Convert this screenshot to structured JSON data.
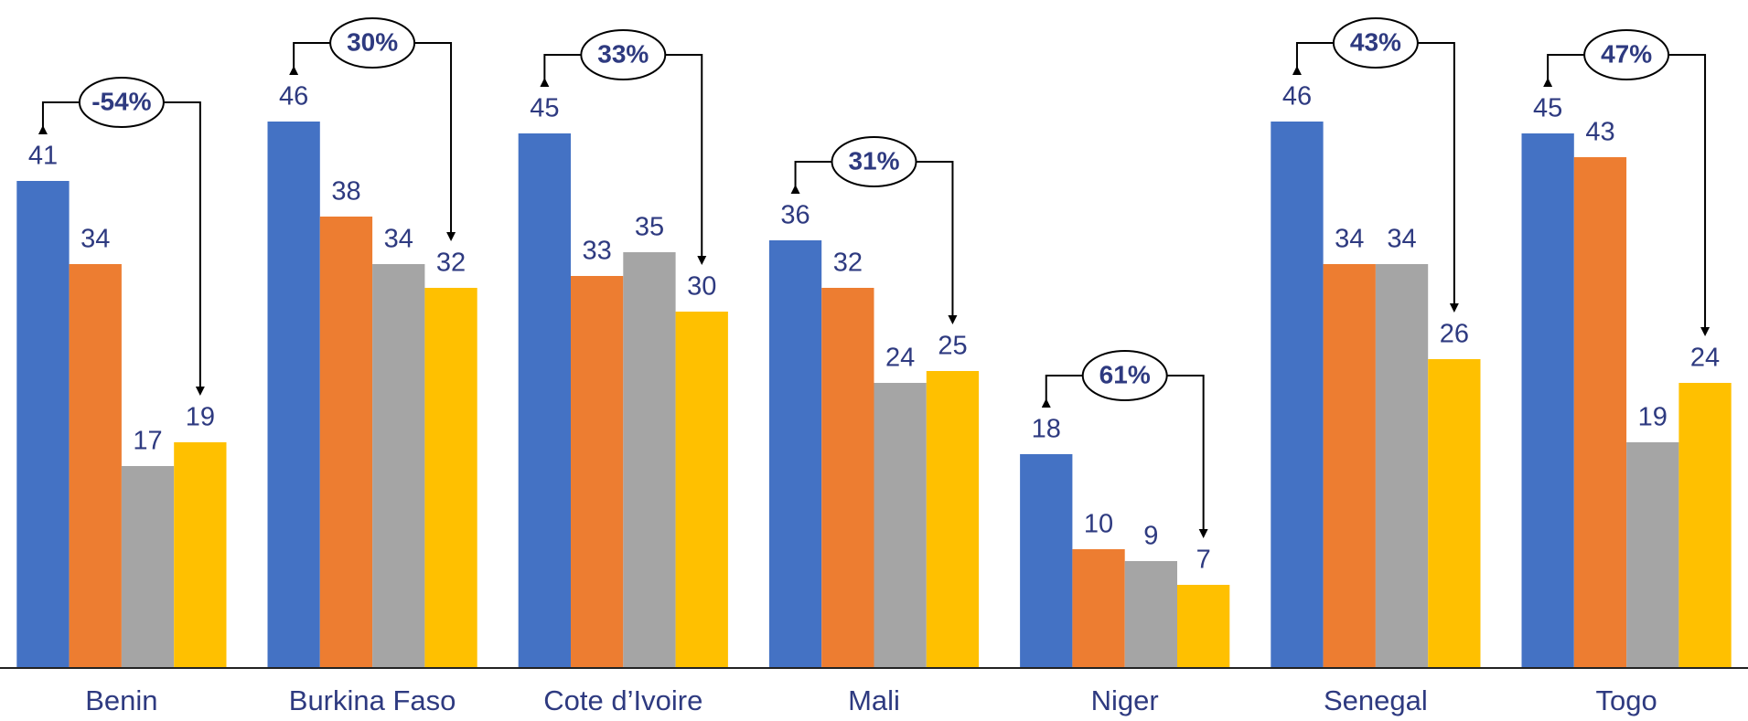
{
  "chart_data": {
    "type": "bar",
    "categories": [
      "Benin",
      "Burkina Faso",
      "Cote d’Ivoire",
      "Mali",
      "Niger",
      "Senegal",
      "Togo"
    ],
    "series": [
      {
        "color": "#4472c4",
        "values": [
          41,
          46,
          45,
          36,
          18,
          46,
          45
        ]
      },
      {
        "color": "#ed7d31",
        "values": [
          34,
          38,
          33,
          32,
          10,
          34,
          43
        ]
      },
      {
        "color": "#a5a5a5",
        "values": [
          17,
          34,
          35,
          24,
          9,
          34,
          19
        ]
      },
      {
        "color": "#ffc000",
        "values": [
          19,
          32,
          30,
          25,
          7,
          26,
          24
        ]
      }
    ],
    "annotations": [
      "-54%",
      "30%",
      "33%",
      "31%",
      "61%",
      "43%",
      "47%"
    ],
    "ylim": [
      0,
      56
    ],
    "grid": false
  }
}
